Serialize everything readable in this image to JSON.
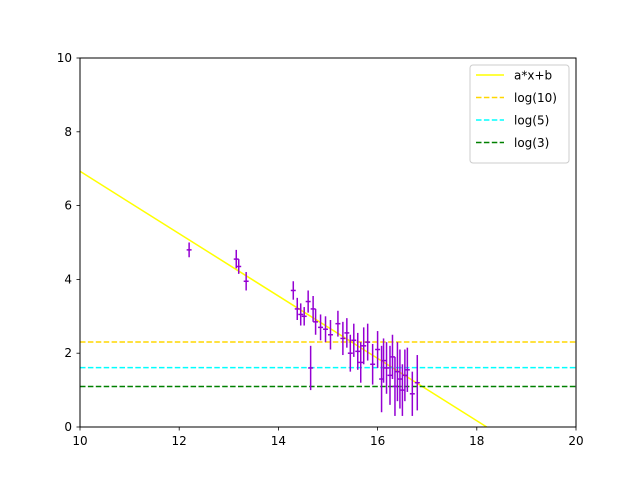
{
  "chart_data": {
    "type": "scatter",
    "title": "",
    "xlabel": "",
    "ylabel": "",
    "xlim": [
      10,
      20
    ],
    "ylim": [
      0,
      10
    ],
    "xticks": [
      10,
      12,
      14,
      16,
      18,
      20
    ],
    "yticks": [
      0,
      2,
      4,
      6,
      8,
      10
    ],
    "grid": false,
    "legend_position": "top-right",
    "series": [
      {
        "name": "a*x+b",
        "kind": "line",
        "color": "#ffff00",
        "dash": "solid",
        "x": [
          10,
          18.2
        ],
        "y": [
          6.93,
          0
        ]
      },
      {
        "name": "log(10)",
        "kind": "hline",
        "color": "#ffd700",
        "dash": "dashed",
        "y": 2.3026
      },
      {
        "name": "log(5)",
        "kind": "hline",
        "color": "#00ffff",
        "dash": "dashed",
        "y": 1.6094
      },
      {
        "name": "log(3)",
        "kind": "hline",
        "color": "#008000",
        "dash": "dashed",
        "y": 1.0986
      }
    ],
    "errorbar_points": {
      "color": "#9400d3",
      "points": [
        {
          "x": 12.2,
          "y": 4.8,
          "xerr": 0.05,
          "yerr": 0.2
        },
        {
          "x": 13.15,
          "y": 4.55,
          "xerr": 0.05,
          "yerr": 0.25
        },
        {
          "x": 13.2,
          "y": 4.35,
          "xerr": 0.05,
          "yerr": 0.2
        },
        {
          "x": 13.35,
          "y": 3.95,
          "xerr": 0.05,
          "yerr": 0.25
        },
        {
          "x": 14.3,
          "y": 3.7,
          "xerr": 0.05,
          "yerr": 0.25
        },
        {
          "x": 14.38,
          "y": 3.2,
          "xerr": 0.05,
          "yerr": 0.3
        },
        {
          "x": 14.45,
          "y": 3.05,
          "xerr": 0.05,
          "yerr": 0.3
        },
        {
          "x": 14.52,
          "y": 3.0,
          "xerr": 0.05,
          "yerr": 0.25
        },
        {
          "x": 14.6,
          "y": 3.4,
          "xerr": 0.05,
          "yerr": 0.3
        },
        {
          "x": 14.65,
          "y": 1.6,
          "xerr": 0.05,
          "yerr": 0.6
        },
        {
          "x": 14.7,
          "y": 3.2,
          "xerr": 0.05,
          "yerr": 0.35
        },
        {
          "x": 14.75,
          "y": 2.85,
          "xerr": 0.05,
          "yerr": 0.35
        },
        {
          "x": 14.85,
          "y": 2.7,
          "xerr": 0.05,
          "yerr": 0.35
        },
        {
          "x": 14.95,
          "y": 2.65,
          "xerr": 0.05,
          "yerr": 0.35
        },
        {
          "x": 15.05,
          "y": 2.5,
          "xerr": 0.05,
          "yerr": 0.4
        },
        {
          "x": 15.2,
          "y": 2.8,
          "xerr": 0.05,
          "yerr": 0.35
        },
        {
          "x": 15.3,
          "y": 2.4,
          "xerr": 0.05,
          "yerr": 0.45
        },
        {
          "x": 15.38,
          "y": 2.55,
          "xerr": 0.05,
          "yerr": 0.4
        },
        {
          "x": 15.45,
          "y": 2.0,
          "xerr": 0.05,
          "yerr": 0.5
        },
        {
          "x": 15.52,
          "y": 2.35,
          "xerr": 0.05,
          "yerr": 0.45
        },
        {
          "x": 15.6,
          "y": 2.05,
          "xerr": 0.05,
          "yerr": 0.5
        },
        {
          "x": 15.66,
          "y": 1.75,
          "xerr": 0.05,
          "yerr": 0.55
        },
        {
          "x": 15.72,
          "y": 2.2,
          "xerr": 0.05,
          "yerr": 0.5
        },
        {
          "x": 15.8,
          "y": 2.3,
          "xerr": 0.05,
          "yerr": 0.5
        },
        {
          "x": 15.9,
          "y": 1.7,
          "xerr": 0.05,
          "yerr": 0.55
        },
        {
          "x": 16.0,
          "y": 2.1,
          "xerr": 0.05,
          "yerr": 0.5
        },
        {
          "x": 16.08,
          "y": 1.3,
          "xerr": 0.05,
          "yerr": 0.9
        },
        {
          "x": 16.12,
          "y": 1.8,
          "xerr": 0.05,
          "yerr": 0.6
        },
        {
          "x": 16.18,
          "y": 1.6,
          "xerr": 0.05,
          "yerr": 0.7
        },
        {
          "x": 16.25,
          "y": 1.4,
          "xerr": 0.05,
          "yerr": 0.8
        },
        {
          "x": 16.3,
          "y": 1.9,
          "xerr": 0.05,
          "yerr": 0.6
        },
        {
          "x": 16.35,
          "y": 1.1,
          "xerr": 0.05,
          "yerr": 0.8
        },
        {
          "x": 16.4,
          "y": 1.5,
          "xerr": 0.05,
          "yerr": 0.8
        },
        {
          "x": 16.45,
          "y": 1.3,
          "xerr": 0.05,
          "yerr": 0.8
        },
        {
          "x": 16.5,
          "y": 1.0,
          "xerr": 0.05,
          "yerr": 0.7
        },
        {
          "x": 16.55,
          "y": 1.4,
          "xerr": 0.05,
          "yerr": 0.7
        },
        {
          "x": 16.6,
          "y": 1.55,
          "xerr": 0.05,
          "yerr": 0.6
        },
        {
          "x": 16.7,
          "y": 0.9,
          "xerr": 0.05,
          "yerr": 0.6
        },
        {
          "x": 16.8,
          "y": 1.2,
          "xerr": 0.05,
          "yerr": 0.75
        }
      ]
    }
  }
}
